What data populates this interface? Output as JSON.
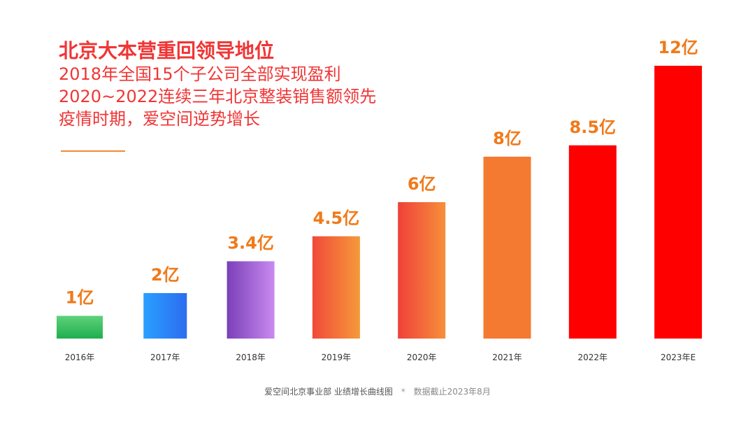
{
  "headline": {
    "title": "北京大本营重回领导地位",
    "lines": [
      "2018年全国15个子公司全部实现盈利",
      "2020~2022连续三年北京整装销售额领先",
      "疫情时期，爱空间逆势增长"
    ]
  },
  "colors": {
    "headline": "#f03535",
    "value_label": "#f07a1a",
    "divider": "#f28a2e"
  },
  "chart_data": {
    "type": "bar",
    "categories": [
      "2016年",
      "2017年",
      "2018年",
      "2019年",
      "2020年",
      "2021年",
      "2022年",
      "2023年E"
    ],
    "values": [
      1,
      2,
      3.4,
      4.5,
      6,
      8,
      8.5,
      12
    ],
    "value_labels": [
      "1亿",
      "2亿",
      "3.4亿",
      "4.5亿",
      "6亿",
      "8亿",
      "8.5亿",
      "12亿"
    ],
    "unit": "亿",
    "ylim": [
      0,
      12
    ],
    "grid": false,
    "bar_colors": [
      [
        "#5fd27a",
        "#1fae50"
      ],
      [
        "#2aa0ff",
        "#2c6cf0"
      ],
      [
        "#7b3fb8",
        "#c98af0"
      ],
      [
        "#f04a3a",
        "#f6993a"
      ],
      [
        "#f0403a",
        "#f6903a"
      ],
      [
        "#f47a32",
        "#f47a32"
      ],
      [
        "#ff0000",
        "#ff0000"
      ],
      [
        "#ff0000",
        "#ff0000"
      ]
    ]
  },
  "footer": {
    "source": "爱空间北京事业部 业绩增长曲线图",
    "star": "*",
    "note": "数据截止2023年8月"
  }
}
